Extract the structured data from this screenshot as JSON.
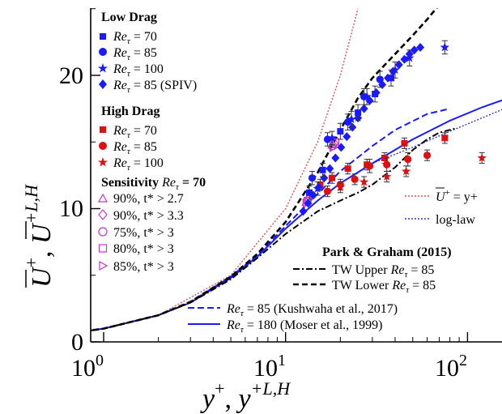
{
  "chart_data": {
    "type": "scatter",
    "title": "",
    "xlabel": "y+, y+L,H",
    "ylabel": "U+, U+L,H",
    "xscale": "log",
    "xlim": [
      0.7,
      180
    ],
    "ylim": [
      0,
      25
    ],
    "x_ticks": [
      {
        "value": 1,
        "base": "10",
        "exp": "0"
      },
      {
        "value": 10,
        "base": "10",
        "exp": "1"
      },
      {
        "value": 100,
        "base": "10",
        "exp": "2"
      }
    ],
    "y_ticks": [
      {
        "value": 0,
        "label": "0"
      },
      {
        "value": 10,
        "label": "10"
      },
      {
        "value": 20,
        "label": "20"
      }
    ],
    "legend_groups": {
      "low_drag": "Low Drag",
      "high_drag": "High Drag",
      "sensitivity": "Sensitivity",
      "sensitivity_re": "70",
      "park_graham": "Park & Graham (2015)"
    },
    "legend_entries": {
      "ld70": "= 70",
      "ld85": "= 85",
      "ld100": "= 100",
      "ldspiv": "= 85 (SPIV)",
      "hd70": "= 70",
      "hd85": "= 85",
      "hd100": "= 100",
      "s1": "90%, t* > 2.7",
      "s2": "90%, t* > 3.3",
      "s3": "75%, t* > 3",
      "s4": "80%, t* > 3",
      "s5": "85%, t* > 3",
      "viscous": "= y+",
      "loglaw": "log-law",
      "tw_upper": "TW Upper",
      "tw_upper_re": "= 85",
      "tw_lower": "TW Lower",
      "tw_lower_re": "= 85",
      "kush": "= 85 (Kushwaha et al., 2017)",
      "moser": "= 180 (Moser et al., 1999)"
    },
    "colors": {
      "low_drag": "#1a1aff",
      "high_drag": "#dd1111",
      "sensitivity": "#cc33cc",
      "viscous": "#e05050",
      "loglaw": "#3333cc",
      "tw": "#000000",
      "kush": "#1a1aff",
      "moser": "#1a1aff"
    },
    "series": {
      "viscous_sublayer": {
        "x": [
          0.7,
          1,
          2,
          5,
          10,
          15,
          20,
          25
        ],
        "y": [
          0.7,
          1,
          2,
          5,
          10,
          15,
          20,
          25
        ]
      },
      "log_law": {
        "x": [
          30,
          50,
          80,
          120,
          180
        ],
        "y": [
          13.4,
          14.6,
          15.8,
          16.8,
          17.8
        ]
      },
      "moser_re180": {
        "x": [
          0.7,
          1,
          2,
          3,
          5,
          7,
          10,
          15,
          20,
          30,
          50,
          80,
          120,
          160,
          180
        ],
        "y": [
          0.7,
          1.0,
          2.0,
          2.95,
          4.8,
          6.4,
          8.5,
          10.6,
          11.9,
          13.4,
          15.2,
          16.6,
          17.6,
          18.2,
          18.3
        ]
      },
      "kushwaha_re85": {
        "x": [
          0.7,
          1,
          2,
          3,
          5,
          7,
          10,
          15,
          20,
          30,
          40,
          60,
          80
        ],
        "y": [
          0.7,
          1.0,
          2.0,
          3.0,
          4.9,
          6.5,
          8.7,
          11.1,
          12.8,
          14.7,
          15.9,
          17.1,
          17.5
        ]
      },
      "tw_lower_re85": {
        "x": [
          0.7,
          1,
          2,
          3,
          5,
          7,
          10,
          15,
          20,
          25,
          30,
          40,
          50,
          60,
          70
        ],
        "y": [
          0.7,
          1.0,
          2.0,
          3.0,
          4.9,
          6.6,
          9.0,
          12.7,
          15.9,
          18.3,
          19.8,
          21.6,
          23.0,
          24.2,
          25.3
        ]
      },
      "tw_upper_re85": {
        "x": [
          0.7,
          1,
          2,
          3,
          5,
          7,
          10,
          15,
          20,
          25,
          30,
          40,
          50,
          60,
          70,
          85
        ],
        "y": [
          0.7,
          1.0,
          2.0,
          2.95,
          4.7,
          6.3,
          8.1,
          9.8,
          10.6,
          11.2,
          11.8,
          13.1,
          14.4,
          15.2,
          15.7,
          16.0
        ]
      },
      "low_drag_re70": {
        "x": [
          13.5,
          16,
          20,
          25,
          31,
          38
        ],
        "y": [
          11.2,
          12.9,
          15.8,
          17.2,
          18.6,
          19.8
        ],
        "err": [
          0.5,
          0.5,
          0.6,
          0.6,
          0.6,
          0.6
        ]
      },
      "low_drag_re85": {
        "x": [
          14,
          17,
          22,
          27,
          33
        ],
        "y": [
          12.3,
          15.2,
          16.5,
          18.4,
          19.7
        ],
        "err": [
          0.5,
          0.5,
          0.6,
          0.6,
          0.6
        ]
      },
      "low_drag_re100": {
        "x": [
          15,
          18,
          23,
          28,
          40,
          48,
          75
        ],
        "y": [
          11.5,
          15.3,
          16.7,
          18.4,
          20.4,
          21.3,
          22.1
        ],
        "err": [
          0.5,
          0.5,
          0.6,
          0.6,
          0.6,
          0.6,
          0.5
        ]
      },
      "low_drag_spiv": {
        "x": [
          12.5,
          13.3,
          14.2,
          15.2,
          16.3,
          17.5,
          18.8,
          20.2,
          21.7,
          23.3,
          25,
          27,
          29,
          31.5,
          34,
          36.5,
          39,
          42,
          45,
          48,
          51,
          55
        ],
        "y": [
          9.8,
          10.4,
          11.0,
          11.6,
          12.3,
          13.0,
          13.8,
          14.6,
          15.4,
          16.1,
          16.8,
          17.5,
          18.1,
          18.7,
          19.3,
          19.8,
          20.3,
          20.8,
          21.2,
          21.6,
          21.9,
          22.1
        ]
      },
      "high_drag_re70": {
        "x": [
          15.5,
          18,
          22,
          28,
          35,
          45,
          75
        ],
        "y": [
          11.8,
          12.3,
          13.0,
          13.3,
          13.8,
          14.9,
          15.3
        ],
        "err": [
          0.4,
          0.4,
          0.4,
          0.4,
          0.4,
          0.4,
          0.4
        ]
      },
      "high_drag_re85": {
        "x": [
          17,
          20,
          24,
          29,
          36,
          47,
          60
        ],
        "y": [
          11.3,
          11.8,
          12.2,
          13.2,
          13.3,
          13.7,
          14.0
        ],
        "err": [
          0.4,
          0.4,
          0.4,
          0.5,
          0.5,
          0.5,
          0.4
        ]
      },
      "high_drag_re100": {
        "x": [
          20,
          27,
          36,
          46,
          120
        ],
        "y": [
          11.6,
          12.0,
          12.4,
          12.8,
          13.8
        ],
        "err": [
          0.4,
          0.4,
          0.4,
          0.4,
          0.4
        ]
      },
      "sens_s1": {
        "x": [
          13.0,
          18.0
        ],
        "y": [
          10.5,
          14.8
        ]
      },
      "sens_s2": {
        "x": [
          13.3,
          18.5
        ],
        "y": [
          10.7,
          14.9
        ]
      },
      "sens_s3": {
        "x": [
          13.1,
          18.2
        ],
        "y": [
          10.6,
          14.7
        ]
      },
      "sens_s4": {
        "x": [
          13.2,
          18.8
        ],
        "y": [
          10.6,
          15.0
        ]
      },
      "sens_s5": {
        "x": [
          13.0,
          18.3
        ],
        "y": [
          10.4,
          14.6
        ]
      }
    }
  }
}
